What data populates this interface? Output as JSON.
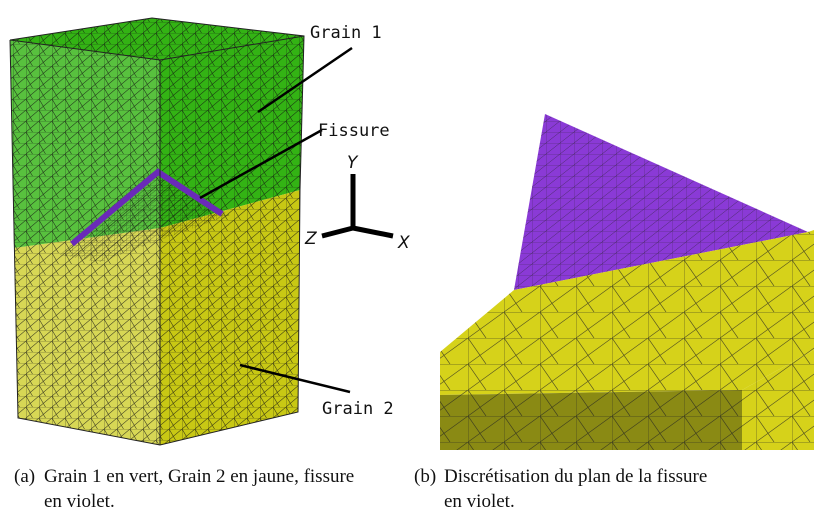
{
  "panel_a": {
    "labels": {
      "grain1": "Grain 1",
      "fissure": "Fissure",
      "grain2": "Grain 2"
    },
    "axes": {
      "y": "Y",
      "z": "Z",
      "x": "X"
    },
    "colors": {
      "grain1": "#33b314",
      "grain2": "#c8c814",
      "fissure": "#6a2ab8",
      "mesh": "#1a1a1a"
    }
  },
  "panel_b": {
    "colors": {
      "plane": "#8a3ad6",
      "grain": "#d6d21a",
      "grain_dark": "#8a8a14"
    }
  },
  "captions": {
    "a_label": "(a)",
    "a_line1": "Grain 1 en vert, Grain 2 en jaune, fissure",
    "a_line2": "en violet.",
    "b_label": "(b)",
    "b_line1": "Discrétisation du plan de la fissure",
    "b_line2": "en violet."
  }
}
